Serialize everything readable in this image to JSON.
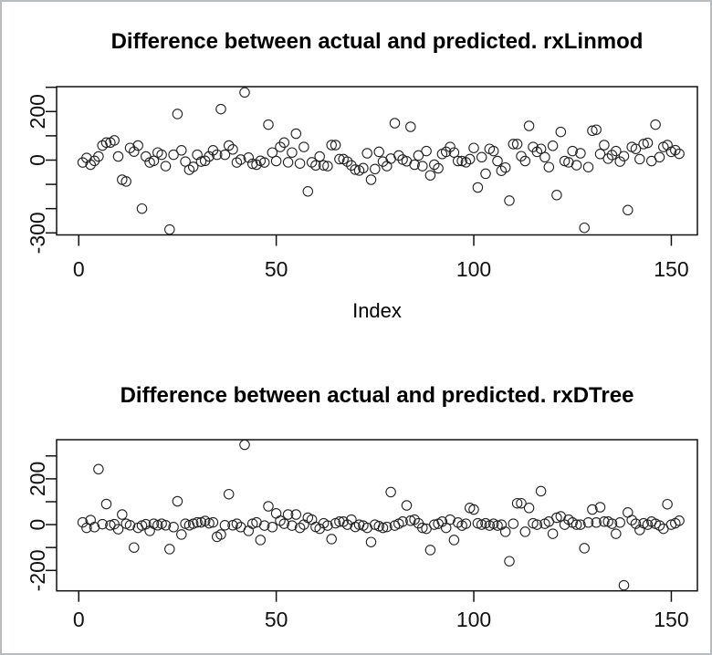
{
  "figure": {
    "background": "#ffffff",
    "border_color": "#b9bcbe",
    "axis_color": "#111111",
    "point_color": "#222222"
  },
  "chart_data": [
    {
      "type": "scatter",
      "title": "Difference between actual and predicted. rxLinmod",
      "xlabel": "Index",
      "ylabel": "",
      "x_is_index": true,
      "n": 152,
      "x_ticks": [
        0,
        50,
        100,
        150
      ],
      "y_ticks": [
        300,
        200,
        100,
        0,
        -100,
        -200,
        -300
      ],
      "y_tick_labels": [
        200,
        0,
        -300
      ],
      "xlim": [
        -5.6,
        156.6
      ],
      "ylim": [
        -308.3,
        302.5
      ],
      "grid": false,
      "values": [
        -10,
        9,
        -19,
        -3,
        15,
        60,
        72,
        72,
        81,
        15,
        -81,
        -88,
        50,
        35,
        60,
        -200,
        15,
        -10,
        -3,
        31,
        22,
        -25,
        -286,
        22,
        190,
        40,
        -6,
        -40,
        -28,
        22,
        -6,
        -3,
        15,
        40,
        22,
        210,
        22,
        60,
        44,
        -10,
        2,
        279,
        10,
        -15,
        -19,
        -3,
        -10,
        146,
        31,
        -4,
        54,
        72,
        -9,
        31,
        109,
        -14,
        54,
        -129,
        -9,
        -22,
        15,
        -22,
        -25,
        62,
        62,
        4,
        4,
        -6,
        -22,
        -39,
        -43,
        -33,
        28,
        -81,
        -37,
        34,
        -6,
        -25,
        6,
        152,
        19,
        2,
        -5,
        137,
        -19,
        19,
        -25,
        37,
        -63,
        -19,
        -34,
        25,
        34,
        54,
        31,
        -4,
        -4,
        -9,
        4,
        50,
        -113,
        12,
        -56,
        46,
        37,
        -4,
        -44,
        -31,
        -167,
        66,
        66,
        16,
        -4,
        141,
        54,
        34,
        46,
        12,
        -29,
        59,
        -144,
        116,
        -4,
        -9,
        37,
        -21,
        28,
        -279,
        -29,
        121,
        125,
        25,
        62,
        6,
        21,
        37,
        -6,
        16,
        -206,
        54,
        46,
        4,
        66,
        71,
        -4,
        146,
        12,
        54,
        62,
        34,
        41,
        26
      ]
    },
    {
      "type": "scatter",
      "title": "Difference between actual and predicted. rxDTree",
      "xlabel": "",
      "ylabel": "",
      "x_is_index": true,
      "n": 152,
      "x_ticks": [
        0,
        50,
        100,
        150
      ],
      "y_ticks": [
        300,
        200,
        100,
        0,
        -100,
        -200
      ],
      "y_tick_labels": [
        200,
        0,
        -200
      ],
      "xlim": [
        -5.6,
        156.6
      ],
      "ylim": [
        -289.3,
        370.8
      ],
      "grid": false,
      "values": [
        10,
        -14,
        20,
        -11,
        242,
        2,
        90,
        -3,
        2,
        -20,
        44,
        4,
        -3,
        -100,
        -14,
        -4,
        2,
        -27,
        4,
        -3,
        4,
        -3,
        -107,
        -11,
        102,
        -43,
        4,
        -3,
        4,
        10,
        10,
        16,
        6,
        10,
        -53,
        -43,
        -3,
        133,
        -3,
        4,
        -11,
        349,
        -27,
        4,
        10,
        -67,
        -4,
        80,
        -11,
        49,
        17,
        4,
        44,
        -4,
        44,
        -14,
        0,
        30,
        22,
        -10,
        -18,
        6,
        -4,
        -63,
        6,
        13,
        13,
        0,
        22,
        -10,
        0,
        -4,
        -14,
        -76,
        0,
        -7,
        -14,
        -10,
        142,
        -4,
        4,
        13,
        84,
        17,
        22,
        6,
        -14,
        -18,
        -111,
        0,
        4,
        13,
        -14,
        22,
        -67,
        9,
        -4,
        4,
        73,
        66,
        6,
        0,
        6,
        -4,
        4,
        -4,
        0,
        -31,
        -160,
        4,
        93,
        93,
        -31,
        73,
        6,
        0,
        146,
        4,
        13,
        -40,
        30,
        36,
        0,
        22,
        9,
        0,
        0,
        -103,
        9,
        66,
        9,
        76,
        13,
        13,
        4,
        -40,
        9,
        -265,
        53,
        20,
        4,
        -23,
        6,
        0,
        13,
        4,
        -4,
        -18,
        89,
        0,
        6,
        17
      ]
    }
  ]
}
